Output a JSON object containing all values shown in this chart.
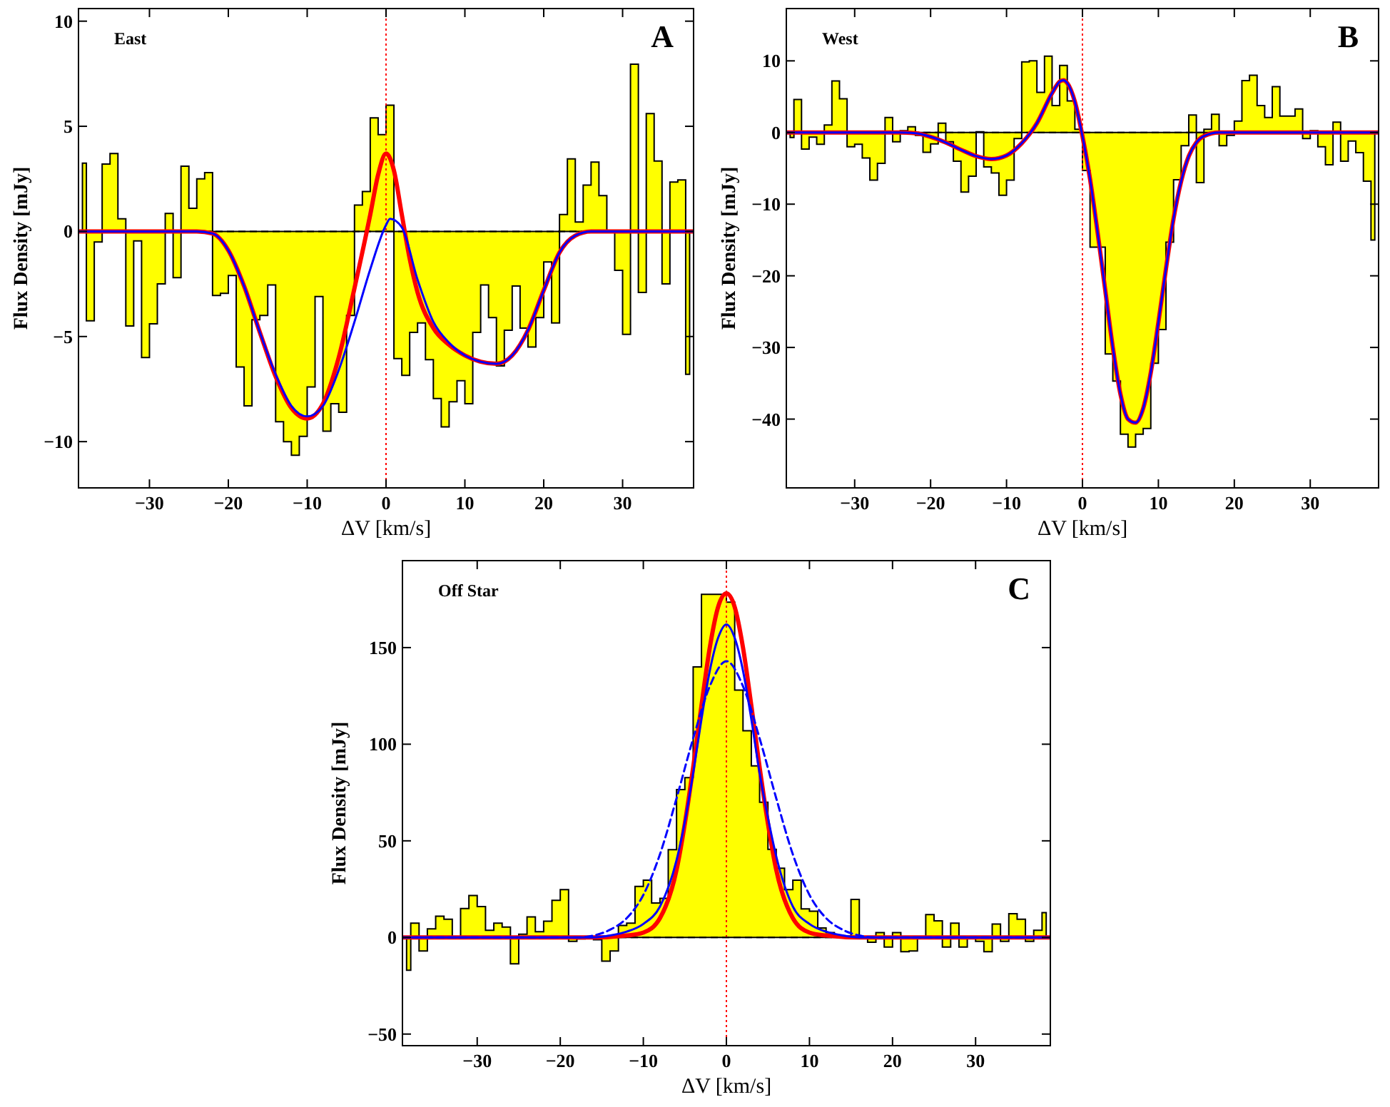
{
  "chart_data": [
    {
      "type": "area",
      "xlabel": "ΔV [km/s]",
      "ylabel": "Flux Density [mJy]",
      "annotations": [
        "East",
        "A"
      ],
      "xlim": [
        -39,
        39
      ],
      "xticks": [
        -30,
        -20,
        -10,
        0,
        10,
        20,
        30
      ],
      "ylim": [
        -12.2,
        10.6
      ],
      "yticks": [
        -10,
        -5,
        0,
        5,
        10
      ],
      "ref_lines": [
        {
          "axis": "x",
          "value": 0,
          "color": "#ff0000",
          "line_style": "dotted"
        },
        {
          "axis": "y",
          "value": 0,
          "color": "#000000",
          "line_style": "dashed"
        }
      ],
      "series": [
        {
          "color": "#ffff00",
          "x": [
            -38.5,
            -37.5,
            -36.5,
            -35.5,
            -34.5,
            -33.5,
            -32.5,
            -31.5,
            -30.5,
            -29.5,
            -28.5,
            -27.5,
            -26.5,
            -25.5,
            -24.5,
            -23.5,
            -22.5,
            -21.5,
            -20.5,
            -19.5,
            -18.5,
            -17.5,
            -16.5,
            -15.5,
            -14.5,
            -13.5,
            -12.5,
            -11.5,
            -10.5,
            -9.5,
            -8.5,
            -7.5,
            -6.5,
            -5.5,
            -4.5,
            -3.5,
            -2.5,
            -1.5,
            -0.5,
            0.5,
            1.5,
            2.5,
            3.5,
            4.5,
            5.5,
            6.5,
            7.5,
            8.5,
            9.5,
            10.5,
            11.5,
            12.5,
            13.5,
            14.5,
            15.5,
            16.5,
            17.5,
            18.5,
            19.5,
            20.5,
            21.5,
            22.5,
            23.5,
            24.5,
            25.5,
            26.5,
            27.5,
            28.5,
            29.5,
            30.5,
            31.5,
            32.5,
            33.5,
            34.5,
            35.5,
            36.5,
            37.5,
            38.5
          ],
          "values": [
            3.25,
            -4.25,
            -0.5,
            3.2,
            3.7,
            0.6,
            -4.5,
            -0.45,
            -6.0,
            -4.4,
            -2.5,
            0.85,
            -2.2,
            3.1,
            1.1,
            2.5,
            2.8,
            -3.05,
            -2.95,
            -2.1,
            -6.45,
            -8.3,
            -4.2,
            -4.0,
            -2.55,
            -9.05,
            -10.0,
            -10.65,
            -9.75,
            -7.4,
            -3.1,
            -9.5,
            -8.2,
            -8.6,
            -4.0,
            1.25,
            1.9,
            5.4,
            4.6,
            6.0,
            -6.05,
            -6.85,
            -4.8,
            -4.35,
            -6.1,
            -7.95,
            -9.3,
            -8.1,
            -7.1,
            -8.2,
            -4.8,
            -2.55,
            -4.1,
            -6.4,
            -4.7,
            -2.6,
            -4.6,
            -5.5,
            -4.1,
            -1.45,
            -4.35,
            0.8,
            3.45,
            0.45,
            2.2,
            3.3,
            1.7,
            0,
            -1.85,
            -4.9,
            7.95,
            -2.9,
            5.6,
            3.35,
            -2.5,
            2.35,
            2.45,
            -6.8
          ]
        },
        {
          "type": "line",
          "color": "#ff0000",
          "x": [
            -39,
            -24,
            -22,
            -20,
            -18,
            -16,
            -14,
            -12,
            -10,
            -8,
            -6,
            -4,
            -2,
            -1,
            0,
            1,
            2,
            3,
            4,
            6,
            8,
            10,
            12,
            14,
            16,
            18,
            20,
            22,
            24,
            26,
            39
          ],
          "values": [
            0,
            0,
            -0.1,
            -0.9,
            -2.6,
            -4.8,
            -6.9,
            -8.4,
            -8.9,
            -8.2,
            -6.0,
            -2.7,
            0.8,
            2.7,
            3.7,
            2.9,
            0.8,
            -1.3,
            -2.9,
            -4.6,
            -5.4,
            -5.9,
            -6.2,
            -6.3,
            -5.9,
            -4.7,
            -2.8,
            -1.0,
            -0.2,
            0,
            0
          ]
        },
        {
          "type": "line",
          "color": "#0000ff",
          "x": [
            -39,
            -24,
            -22,
            -20,
            -18,
            -16,
            -14,
            -12,
            -10,
            -8,
            -6,
            -4,
            -2,
            0,
            0.5,
            2,
            4,
            6,
            8,
            10,
            12,
            14,
            16,
            18,
            20,
            22,
            24,
            26,
            39
          ],
          "values": [
            0,
            0,
            -0.1,
            -0.9,
            -2.6,
            -4.8,
            -6.8,
            -8.3,
            -8.8,
            -8.3,
            -6.6,
            -4.3,
            -1.8,
            0.3,
            0.6,
            0.2,
            -2.3,
            -4.3,
            -5.3,
            -5.9,
            -6.2,
            -6.3,
            -5.9,
            -4.7,
            -2.8,
            -1.0,
            -0.2,
            0,
            0
          ]
        }
      ]
    },
    {
      "type": "area",
      "xlabel": "ΔV [km/s]",
      "ylabel": "Flux Density [mJy]",
      "annotations": [
        "West",
        "B"
      ],
      "xlim": [
        -39,
        39
      ],
      "xticks": [
        -30,
        -20,
        -10,
        0,
        10,
        20,
        30
      ],
      "ylim": [
        -49.6,
        17.3
      ],
      "yticks": [
        -40,
        -30,
        -20,
        -10,
        0,
        10
      ],
      "ref_lines": [
        {
          "axis": "x",
          "value": 0,
          "color": "#ff0000",
          "line_style": "dotted"
        },
        {
          "axis": "y",
          "value": 0,
          "color": "#000000",
          "line_style": "dashed"
        }
      ],
      "series": [
        {
          "color": "#ffff00",
          "x": [
            -38.5,
            -37.5,
            -36.5,
            -35.5,
            -34.5,
            -33.5,
            -32.5,
            -31.5,
            -30.5,
            -29.5,
            -28.5,
            -27.5,
            -26.5,
            -25.5,
            -24.5,
            -23.5,
            -22.5,
            -21.5,
            -20.5,
            -19.5,
            -18.5,
            -17.5,
            -16.5,
            -15.5,
            -14.5,
            -13.5,
            -12.5,
            -11.5,
            -10.5,
            -9.5,
            -8.5,
            -7.5,
            -6.5,
            -5.5,
            -4.5,
            -3.5,
            -2.5,
            -1.5,
            -0.5,
            0.5,
            1.5,
            2.5,
            3.5,
            4.5,
            5.5,
            6.5,
            7.5,
            8.5,
            9.5,
            10.5,
            11.5,
            12.5,
            13.5,
            14.5,
            15.5,
            16.5,
            17.5,
            18.5,
            19.5,
            20.5,
            21.5,
            22.5,
            23.5,
            24.5,
            25.5,
            26.5,
            27.5,
            28.5,
            29.5,
            30.5,
            31.5,
            32.5,
            33.5,
            34.5,
            35.5,
            36.5,
            37.5,
            38.5
          ],
          "values": [
            -0.7,
            4.6,
            -2.3,
            -0.65,
            -1.65,
            1.05,
            7.2,
            4.7,
            -2.0,
            -1.65,
            -3.55,
            -6.65,
            -4.3,
            2.1,
            -1.3,
            0.25,
            0.8,
            -0.4,
            -2.75,
            -1.6,
            1.3,
            -1.3,
            -4.0,
            -8.3,
            -6.1,
            0.1,
            -4.8,
            -5.65,
            -8.75,
            -6.65,
            -0.85,
            9.85,
            10.0,
            5.6,
            10.65,
            3.75,
            9.35,
            4.4,
            0.45,
            -5.3,
            -16.0,
            -16.0,
            -30.9,
            -34.7,
            -42.1,
            -43.9,
            -42.1,
            -41.3,
            -32.2,
            -27.5,
            -15.3,
            -6.6,
            -1.85,
            2.45,
            -7.0,
            0.45,
            2.55,
            -1.85,
            -0.4,
            1.6,
            7.25,
            8.0,
            3.75,
            2.1,
            6.4,
            2.3,
            2.3,
            3.3,
            -0.85,
            0.25,
            -2.0,
            -4.5,
            1.45,
            -4.0,
            -1.2,
            -2.8,
            -6.8,
            -15
          ]
        },
        {
          "type": "line",
          "color": "#ff0000",
          "x": [
            -39,
            -24,
            -22,
            -20,
            -18,
            -16,
            -14,
            -12,
            -10,
            -8,
            -6,
            -4,
            -3,
            -2.5,
            -2,
            -1,
            0,
            1,
            2,
            3,
            4,
            5,
            6,
            7,
            8,
            9,
            10,
            11,
            12,
            13,
            14,
            15,
            16,
            18,
            39
          ],
          "values": [
            0,
            0,
            -0.1,
            -0.6,
            -1.4,
            -2.4,
            -3.3,
            -3.7,
            -3.2,
            -1.5,
            1.3,
            5.5,
            7.1,
            7.3,
            6.9,
            4.3,
            -0.5,
            -6.5,
            -14,
            -22,
            -30,
            -36.5,
            -40,
            -40.5,
            -38.5,
            -33.5,
            -26.5,
            -19,
            -12,
            -6.8,
            -3.3,
            -1.4,
            -0.5,
            0,
            0
          ]
        },
        {
          "type": "line",
          "color": "#0000ff",
          "x": [
            -39,
            -24,
            -22,
            -20,
            -18,
            -16,
            -14,
            -12,
            -10,
            -8,
            -6,
            -4,
            -3,
            -2.5,
            -2,
            -1,
            0,
            1,
            2,
            3,
            4,
            5,
            6,
            7,
            8,
            9,
            10,
            11,
            12,
            13,
            14,
            15,
            16,
            18,
            39
          ],
          "values": [
            0,
            0,
            -0.1,
            -0.6,
            -1.4,
            -2.4,
            -3.3,
            -3.7,
            -3.2,
            -1.5,
            1.3,
            5.5,
            7.1,
            7.3,
            6.9,
            4.3,
            -0.5,
            -6.5,
            -14,
            -22,
            -30,
            -36.5,
            -40,
            -40.5,
            -38.5,
            -33.5,
            -26.5,
            -19,
            -12,
            -6.8,
            -3.3,
            -1.4,
            -0.5,
            0,
            0
          ]
        }
      ]
    },
    {
      "type": "area",
      "xlabel": "ΔV [km/s]",
      "ylabel": "Flux Density [mJy]",
      "annotations": [
        "Off Star",
        "C"
      ],
      "xlim": [
        -39,
        39
      ],
      "xticks": [
        -30,
        -20,
        -10,
        0,
        10,
        20,
        30
      ],
      "ylim": [
        -56,
        195
      ],
      "yticks": [
        -50,
        0,
        50,
        100,
        150
      ],
      "ref_lines": [
        {
          "axis": "x",
          "value": 0,
          "color": "#ff0000",
          "line_style": "dotted"
        },
        {
          "axis": "y",
          "value": 0,
          "color": "#000000",
          "line_style": "dashed"
        }
      ],
      "series": [
        {
          "color": "#ffff00",
          "x": [
            -38.5,
            -37.5,
            -36.5,
            -35.5,
            -34.5,
            -33.5,
            -32.5,
            -31.5,
            -30.5,
            -29.5,
            -28.5,
            -27.5,
            -26.5,
            -25.5,
            -24.5,
            -23.5,
            -22.5,
            -21.5,
            -20.5,
            -19.5,
            -18.5,
            -17.5,
            -16.5,
            -15.5,
            -14.5,
            -13.5,
            -12.5,
            -11.5,
            -10.5,
            -9.5,
            -8.5,
            -7.5,
            -6.5,
            -5.5,
            -4.5,
            -3.5,
            -2.5,
            -1.5,
            -0.5,
            0.5,
            1.5,
            2.5,
            3.5,
            4.5,
            5.5,
            6.5,
            7.5,
            8.5,
            9.5,
            10.5,
            11.5,
            12.5,
            13.5,
            14.5,
            15.5,
            16.5,
            17.5,
            18.5,
            19.5,
            20.5,
            21.5,
            22.5,
            23.5,
            24.5,
            25.5,
            26.5,
            27.5,
            28.5,
            29.5,
            30.5,
            31.5,
            32.5,
            33.5,
            34.5,
            35.5,
            36.5,
            37.5,
            38.5
          ],
          "values": [
            -17,
            7.4,
            -7,
            4.4,
            11,
            9.4,
            0.5,
            15,
            21.7,
            16,
            3.7,
            7.4,
            5.4,
            -13.6,
            1.7,
            10.6,
            3,
            8.4,
            19.2,
            24.7,
            -2,
            -0.7,
            0,
            -1.2,
            -12.3,
            -7,
            6.2,
            7.4,
            26.4,
            29.6,
            17.8,
            20.2,
            45.4,
            76.5,
            82.7,
            140,
            177.6,
            177.6,
            177.6,
            173.5,
            128,
            107,
            88.8,
            70,
            45.6,
            35.8,
            24.7,
            29.6,
            14.8,
            13.6,
            4.9,
            2.5,
            1.2,
            0.5,
            19.7,
            0.5,
            -2.5,
            2.5,
            -5,
            2.5,
            -7.4,
            -7,
            0.5,
            11.8,
            8.6,
            -5,
            7.4,
            -5,
            0.5,
            -2,
            -7.4,
            6.9,
            -2,
            12.3,
            9.4,
            -2,
            3.7,
            12.8
          ]
        },
        {
          "type": "line",
          "color": "#ff0000",
          "x": [
            -39,
            -16,
            -12,
            -10,
            -8,
            -6,
            -5,
            -4,
            -3,
            -2,
            -1,
            0,
            1,
            2,
            3,
            4,
            5,
            6,
            8,
            10,
            12,
            16,
            39
          ],
          "values": [
            0,
            0,
            1,
            2.5,
            10,
            35,
            59,
            88,
            120,
            150,
            171,
            178,
            171,
            150,
            120,
            88,
            59,
            35,
            10,
            2.5,
            1,
            0,
            0
          ]
        },
        {
          "type": "line",
          "color": "#0000ff",
          "x": [
            -39,
            -16,
            -14,
            -12,
            -10,
            -8,
            -6,
            -5,
            -4,
            -3,
            -2,
            -1,
            0,
            1,
            2,
            3,
            4,
            5,
            6,
            8,
            10,
            12,
            14,
            16,
            39
          ],
          "values": [
            0,
            0,
            1,
            3,
            7,
            16,
            40,
            60,
            85,
            113,
            138,
            155,
            162,
            155,
            138,
            113,
            85,
            62,
            42,
            16,
            7,
            3,
            1,
            0,
            0
          ]
        },
        {
          "type": "line",
          "color": "#0000ff",
          "line_style": "dashed",
          "x": [
            -39,
            -18,
            -16,
            -14,
            -12,
            -10,
            -8,
            -6,
            -4,
            -2,
            0,
            2,
            4,
            6,
            8,
            10,
            12,
            14,
            16,
            18,
            39
          ],
          "values": [
            0,
            0,
            1,
            4,
            10,
            22,
            43,
            72,
            103,
            130,
            143,
            130,
            103,
            72,
            43,
            22,
            10,
            4,
            1,
            0,
            0
          ]
        }
      ]
    }
  ]
}
